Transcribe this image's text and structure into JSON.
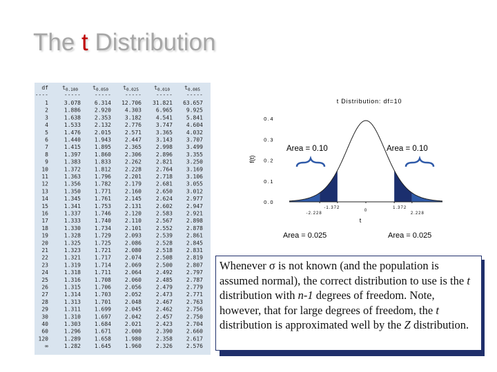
{
  "title": {
    "before": "The ",
    "highlight": "t",
    "after": " Distribution"
  },
  "table": {
    "df_header": "df",
    "symbol": "t",
    "quantiles": [
      "0.100",
      "0.050",
      "0.025",
      "0.010",
      "0.005"
    ],
    "separator": "-----",
    "rows": [
      [
        "1",
        "3.078",
        "6.314",
        "12.706",
        "31.821",
        "63.657"
      ],
      [
        "2",
        "1.886",
        "2.920",
        "4.303",
        "6.965",
        "9.925"
      ],
      [
        "3",
        "1.638",
        "2.353",
        "3.182",
        "4.541",
        "5.841"
      ],
      [
        "4",
        "1.533",
        "2.132",
        "2.776",
        "3.747",
        "4.604"
      ],
      [
        "5",
        "1.476",
        "2.015",
        "2.571",
        "3.365",
        "4.032"
      ],
      [
        "6",
        "1.440",
        "1.943",
        "2.447",
        "3.143",
        "3.707"
      ],
      [
        "7",
        "1.415",
        "1.895",
        "2.365",
        "2.998",
        "3.499"
      ],
      [
        "8",
        "1.397",
        "1.860",
        "2.306",
        "2.896",
        "3.355"
      ],
      [
        "9",
        "1.383",
        "1.833",
        "2.262",
        "2.821",
        "3.250"
      ],
      [
        "10",
        "1.372",
        "1.812",
        "2.228",
        "2.764",
        "3.169"
      ],
      [
        "11",
        "1.363",
        "1.796",
        "2.201",
        "2.718",
        "3.106"
      ],
      [
        "12",
        "1.356",
        "1.782",
        "2.179",
        "2.681",
        "3.055"
      ],
      [
        "13",
        "1.350",
        "1.771",
        "2.160",
        "2.650",
        "3.012"
      ],
      [
        "14",
        "1.345",
        "1.761",
        "2.145",
        "2.624",
        "2.977"
      ],
      [
        "15",
        "1.341",
        "1.753",
        "2.131",
        "2.602",
        "2.947"
      ],
      [
        "16",
        "1.337",
        "1.746",
        "2.120",
        "2.583",
        "2.921"
      ],
      [
        "17",
        "1.333",
        "1.740",
        "2.110",
        "2.567",
        "2.898"
      ],
      [
        "18",
        "1.330",
        "1.734",
        "2.101",
        "2.552",
        "2.878"
      ],
      [
        "19",
        "1.328",
        "1.729",
        "2.093",
        "2.539",
        "2.861"
      ],
      [
        "20",
        "1.325",
        "1.725",
        "2.086",
        "2.528",
        "2.845"
      ],
      [
        "21",
        "1.323",
        "1.721",
        "2.080",
        "2.518",
        "2.831"
      ],
      [
        "22",
        "1.321",
        "1.717",
        "2.074",
        "2.508",
        "2.819"
      ],
      [
        "23",
        "1.319",
        "1.714",
        "2.069",
        "2.500",
        "2.807"
      ],
      [
        "24",
        "1.318",
        "1.711",
        "2.064",
        "2.492",
        "2.797"
      ],
      [
        "25",
        "1.316",
        "1.708",
        "2.060",
        "2.485",
        "2.787"
      ],
      [
        "26",
        "1.315",
        "1.706",
        "2.056",
        "2.479",
        "2.779"
      ],
      [
        "27",
        "1.314",
        "1.703",
        "2.052",
        "2.473",
        "2.771"
      ],
      [
        "28",
        "1.313",
        "1.701",
        "2.048",
        "2.467",
        "2.763"
      ],
      [
        "29",
        "1.311",
        "1.699",
        "2.045",
        "2.462",
        "2.756"
      ],
      [
        "30",
        "1.310",
        "1.697",
        "2.042",
        "2.457",
        "2.750"
      ],
      [
        "40",
        "1.303",
        "1.684",
        "2.021",
        "2.423",
        "2.704"
      ],
      [
        "60",
        "1.296",
        "1.671",
        "2.000",
        "2.390",
        "2.660"
      ],
      [
        "120",
        "1.289",
        "1.658",
        "1.980",
        "2.358",
        "2.617"
      ],
      [
        "∞",
        "1.282",
        "1.645",
        "1.960",
        "2.326",
        "2.576"
      ]
    ]
  },
  "figure": {
    "title": "t Distribution: df=10",
    "y_label": "f(t)",
    "x_label": "t",
    "yticks": [
      0.4,
      0.3,
      0.2,
      0.1,
      {
        "value": 0,
        "label": "0.0"
      }
    ],
    "xticks": [
      -2.228,
      -1.372,
      0,
      1.372,
      2.228
    ],
    "annotations": [
      "Area = 0.10",
      "Area = 0.10",
      "Area = 0.025",
      "Area = 0.025"
    ]
  },
  "note": [
    "Whenever ",
    "σ",
    " is not known (and the population is assumed normal), the correct distribution to use is the ",
    "t",
    " distribution with ",
    "n-1",
    " degrees of freedom. Note, however, that for large degrees of freedom, the ",
    "t",
    " distribution is approximated well by the ",
    "Z",
    " distribution."
  ]
}
